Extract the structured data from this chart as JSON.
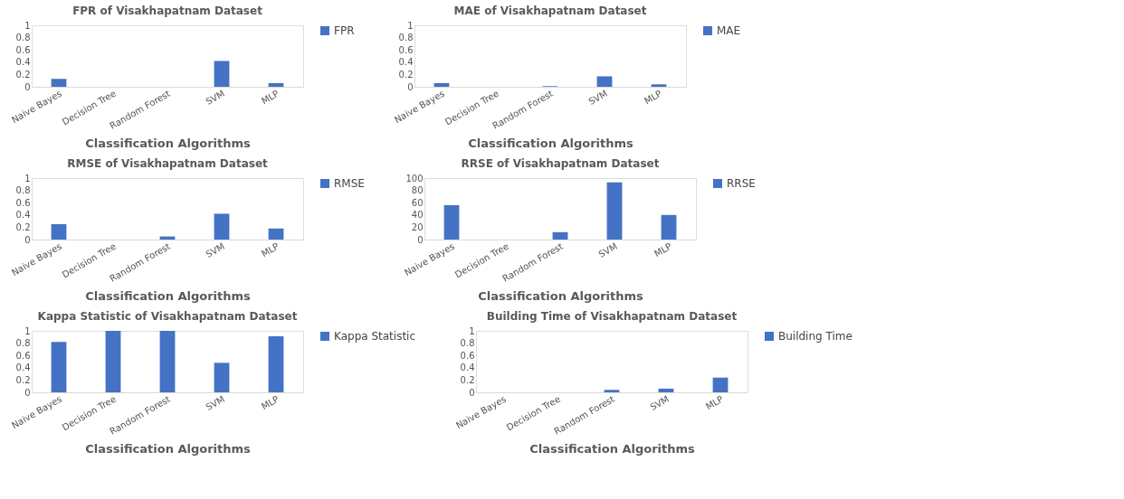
{
  "chart_data": [
    {
      "type": "bar",
      "title": "FPR of Visakhapatnam Dataset",
      "xlabel": "Classification Algorithms",
      "categories": [
        "Naive Bayes",
        "Decision Tree",
        "Random Forest",
        "SVM",
        "MLP"
      ],
      "series": [
        {
          "name": "FPR",
          "color": "#4472c4",
          "values": [
            0.13,
            0,
            0,
            0.42,
            0.06
          ]
        }
      ],
      "ylim": [
        0,
        1
      ],
      "yticks": [
        0,
        0.2,
        0.4,
        0.6,
        0.8,
        1
      ],
      "grid": false,
      "legend": "right"
    },
    {
      "type": "bar",
      "title": "MAE of Visakhapatnam Dataset",
      "xlabel": "Classification Algorithms",
      "categories": [
        "Naive Bayes",
        "Decision Tree",
        "Random Forest",
        "SVM",
        "MLP"
      ],
      "series": [
        {
          "name": "MAE",
          "color": "#4472c4",
          "values": [
            0.06,
            0,
            0.01,
            0.17,
            0.04
          ]
        }
      ],
      "ylim": [
        0,
        1
      ],
      "yticks": [
        0,
        0.2,
        0.4,
        0.6,
        0.8,
        1
      ],
      "grid": false,
      "legend": "right"
    },
    {
      "type": "bar",
      "title": "RMSE of Visakhapatnam Dataset",
      "xlabel": "Classification Algorithms",
      "categories": [
        "Naive Bayes",
        "Decision Tree",
        "Random Forest",
        "SVM",
        "MLP"
      ],
      "series": [
        {
          "name": "RMSE",
          "color": "#4472c4",
          "values": [
            0.25,
            0,
            0.05,
            0.42,
            0.18
          ]
        }
      ],
      "ylim": [
        0,
        1
      ],
      "yticks": [
        0,
        0.2,
        0.4,
        0.6,
        0.8,
        1
      ],
      "grid": false,
      "legend": "right"
    },
    {
      "type": "bar",
      "title": "RRSE of Visakhapatnam Dataset",
      "xlabel": "Classification Algorithms",
      "categories": [
        "Naive Bayes",
        "Decision Tree",
        "Random Forest",
        "SVM",
        "MLP"
      ],
      "series": [
        {
          "name": "RRSE",
          "color": "#4472c4",
          "values": [
            56,
            0,
            12,
            93,
            40
          ]
        }
      ],
      "ylim": [
        0,
        100
      ],
      "yticks": [
        0,
        20,
        40,
        60,
        80,
        100
      ],
      "grid": false,
      "legend": "right"
    },
    {
      "type": "bar",
      "title": "Kappa Statistic of Visakhapatnam Dataset",
      "xlabel": "Classification Algorithms",
      "categories": [
        "Naive Bayes",
        "Decision Tree",
        "Random Forest",
        "SVM",
        "MLP"
      ],
      "series": [
        {
          "name": "Kappa Statistic",
          "color": "#4472c4",
          "values": [
            0.82,
            1,
            1,
            0.48,
            0.91
          ]
        }
      ],
      "ylim": [
        0,
        1
      ],
      "yticks": [
        0,
        0.2,
        0.4,
        0.6,
        0.8,
        1
      ],
      "grid": false,
      "legend": "right"
    },
    {
      "type": "bar",
      "title": "Building Time of Visakhapatnam Dataset",
      "xlabel": "Classification Algorithms",
      "categories": [
        "Naive Bayes",
        "Decision Tree",
        "Random Forest",
        "SVM",
        "MLP"
      ],
      "series": [
        {
          "name": "Building Time",
          "color": "#4472c4",
          "values": [
            0,
            0,
            0.04,
            0.06,
            0.24
          ]
        }
      ],
      "ylim": [
        0,
        1
      ],
      "yticks": [
        0,
        0.2,
        0.4,
        0.6,
        0.8,
        1
      ],
      "grid": false,
      "legend": "right"
    }
  ]
}
